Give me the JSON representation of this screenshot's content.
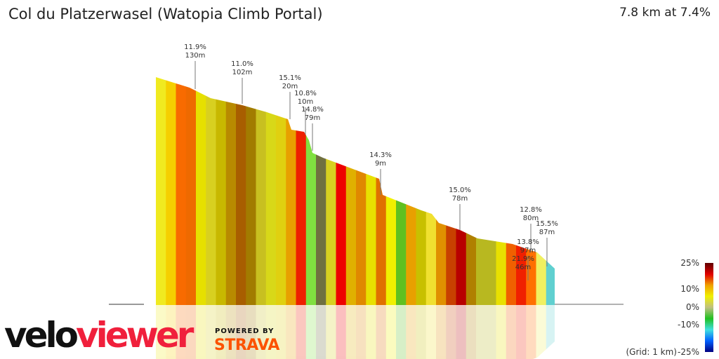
{
  "header": {
    "title": "Col du Platzerwasel (Watopia Climb Portal)",
    "summary": "7.8 km at 7.4%"
  },
  "chart_data": {
    "type": "area",
    "title": "Col du Platzerwasel (Watopia Climb Portal)",
    "distance_km": 7.8,
    "avg_grade_pct": 7.4,
    "grid": "1 km",
    "annotations": [
      {
        "grade": "11.9%",
        "length": "130m"
      },
      {
        "grade": "11.0%",
        "length": "102m"
      },
      {
        "grade": "15.1%",
        "length": "20m"
      },
      {
        "grade": "10.8%",
        "length": "10m"
      },
      {
        "grade": "14.8%",
        "length": "79m"
      },
      {
        "grade": "14.3%",
        "length": "9m"
      },
      {
        "grade": "15.0%",
        "length": "78m"
      },
      {
        "grade": "12.8%",
        "length": "80m"
      },
      {
        "grade": "15.5%",
        "length": "87m"
      },
      {
        "grade": "13.8%",
        "length": "97m"
      },
      {
        "grade": "21.9%",
        "length": "46m"
      }
    ],
    "stripe_colors": [
      "#f0ea20",
      "#f5cf00",
      "#f86b00",
      "#ee6a00",
      "#e6e000",
      "#d8d020",
      "#c8b800",
      "#b88a00",
      "#a85e00",
      "#a27c00",
      "#c8c020",
      "#d8d818",
      "#e0d010",
      "#e8a000",
      "#ee2000",
      "#80e040",
      "#707040",
      "#d8d020",
      "#ee0000",
      "#e0b000",
      "#e08800",
      "#e8e000",
      "#e07000",
      "#f0f000",
      "#60c020",
      "#e8a000",
      "#c8c000",
      "#f0e030",
      "#e09000",
      "#c84000",
      "#b80000",
      "#b08000",
      "#b8b820",
      "#b8b820",
      "#e8e000",
      "#f06000",
      "#f02000",
      "#ff7000",
      "#f0f060",
      "#60d0d0"
    ],
    "legend": {
      "ticks": [
        "25%",
        "10%",
        "0%",
        "-10%",
        "-25%"
      ],
      "grid_label": "(Grid: 1 km)",
      "colors": [
        "#600000",
        "#e00000",
        "#f0a000",
        "#f0f000",
        "#c0c080",
        "#20c020",
        "#40e0e0",
        "#0060ff",
        "#000080"
      ]
    }
  },
  "branding": {
    "velo": "velo",
    "viewer": "viewer",
    "powered_by": "POWERED BY",
    "strava": "STRAVA"
  }
}
